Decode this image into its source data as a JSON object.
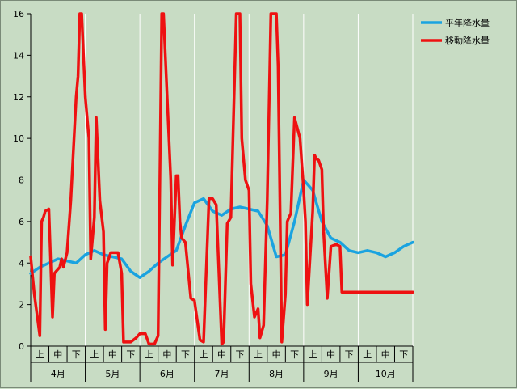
{
  "chart_data": {
    "type": "line",
    "ylim": [
      0,
      16
    ],
    "yticks": [
      "0",
      "2",
      "4",
      "6",
      "8",
      "10",
      "12",
      "14",
      "16"
    ],
    "period_labels": [
      "上",
      "中",
      "下",
      "上",
      "中",
      "下",
      "上",
      "中",
      "下",
      "上",
      "中",
      "下",
      "上",
      "中",
      "下",
      "上",
      "中",
      "下",
      "上",
      "中",
      "下"
    ],
    "month_labels": [
      "4月",
      "5月",
      "6月",
      "7月",
      "8月",
      "9月",
      "10月"
    ],
    "legend_position": "top-right",
    "grid": "vertical",
    "series": [
      {
        "name": "平年降水量",
        "color": "#1aa3e0",
        "x": [
          0,
          0.5,
          1,
          1.5,
          2,
          2.5,
          3,
          3.5,
          4,
          4.5,
          5,
          5.5,
          6,
          6.5,
          7,
          7.5,
          8,
          8.5,
          9,
          9.5,
          10,
          10.5,
          11,
          11.5,
          12,
          12.5,
          13,
          13.5,
          14,
          14.5,
          15,
          15.5,
          16,
          16.5,
          17,
          17.5,
          18,
          18.5,
          19,
          19.5,
          20,
          20.5,
          21
        ],
        "values": [
          3.5,
          3.8,
          4.0,
          4.2,
          4.1,
          4.0,
          4.4,
          4.6,
          4.4,
          4.3,
          4.2,
          3.6,
          3.3,
          3.6,
          4.0,
          4.3,
          4.6,
          5.8,
          6.9,
          7.1,
          6.5,
          6.3,
          6.6,
          6.7,
          6.6,
          6.5,
          5.8,
          4.3,
          4.4,
          6.0,
          8.0,
          7.5,
          6.0,
          5.2,
          5.0,
          4.6,
          4.5,
          4.6,
          4.5,
          4.3,
          4.5,
          4.8,
          5.0
        ]
      },
      {
        "name": "移動降水量",
        "color": "#ee1111",
        "x": [
          0,
          0.2,
          0.5,
          0.6,
          0.7,
          0.8,
          1.0,
          1.2,
          1.3,
          1.4,
          1.6,
          1.7,
          1.8,
          2.0,
          2.2,
          2.5,
          2.6,
          2.7,
          2.8,
          3.0,
          3.2,
          3.3,
          3.5,
          3.6,
          3.8,
          4.0,
          4.1,
          4.2,
          4.4,
          4.6,
          4.8,
          5.0,
          5.1,
          5.2,
          5.5,
          5.8,
          6.0,
          6.3,
          6.5,
          6.8,
          7.0,
          7.2,
          7.3,
          7.5,
          7.7,
          7.8,
          8.0,
          8.1,
          8.2,
          8.3,
          8.5,
          8.8,
          9.0,
          9.3,
          9.5,
          9.8,
          10.0,
          10.2,
          10.5,
          10.6,
          10.8,
          11.0,
          11.3,
          11.5,
          11.6,
          11.8,
          12.0,
          12.1,
          12.3,
          12.5,
          12.6,
          12.8,
          13.0,
          13.2,
          13.5,
          13.6,
          13.8,
          14.0,
          14.1,
          14.2,
          14.3,
          14.5,
          14.8,
          15.0,
          15.1,
          15.2,
          15.5,
          15.6,
          15.7,
          15.8,
          16.0,
          16.1,
          16.3,
          16.5,
          16.8,
          17.0,
          17.1,
          17.3,
          17.5,
          17.8,
          18.0,
          18.2,
          18.4,
          18.6,
          18.8,
          19.0,
          19.2,
          19.3,
          19.5,
          19.6,
          19.8,
          20.0,
          20.2,
          20.4,
          20.5,
          20.6,
          20.8,
          21.0
        ],
        "values": [
          4.3,
          2.5,
          0.5,
          6.0,
          6.2,
          6.5,
          6.6,
          1.4,
          3.5,
          3.6,
          3.8,
          4.2,
          3.8,
          4.5,
          7.0,
          12.0,
          13.0,
          16.0,
          16.0,
          12.0,
          10.0,
          4.2,
          6.2,
          11.0,
          7.0,
          5.5,
          0.8,
          4.0,
          4.5,
          4.5,
          4.5,
          3.5,
          0.2,
          0.2,
          0.2,
          0.4,
          0.6,
          0.6,
          0.1,
          0.1,
          0.5,
          16.0,
          16.0,
          12.0,
          8.0,
          3.9,
          8.2,
          8.2,
          6.0,
          5.2,
          5.0,
          2.3,
          2.2,
          0.3,
          0.2,
          7.1,
          7.1,
          6.8,
          0.1,
          0.2,
          5.9,
          6.2,
          16.0,
          16.0,
          10.0,
          8.0,
          7.5,
          3.0,
          1.4,
          1.8,
          0.4,
          1.0,
          7.0,
          16.0,
          16.0,
          13.5,
          0.2,
          2.5,
          6.0,
          6.2,
          6.4,
          11.0,
          10.0,
          7.5,
          6.0,
          2.0,
          6.5,
          9.2,
          9.0,
          9.0,
          8.5,
          5.5,
          2.3,
          4.8,
          4.9,
          4.8,
          2.6,
          2.6,
          2.6,
          2.6,
          2.6,
          2.6,
          2.6,
          2.6,
          2.6,
          2.6,
          2.6,
          2.6,
          2.6,
          2.6,
          2.6,
          2.6,
          2.6,
          2.6,
          2.6,
          2.6,
          2.6,
          2.6
        ]
      }
    ]
  }
}
